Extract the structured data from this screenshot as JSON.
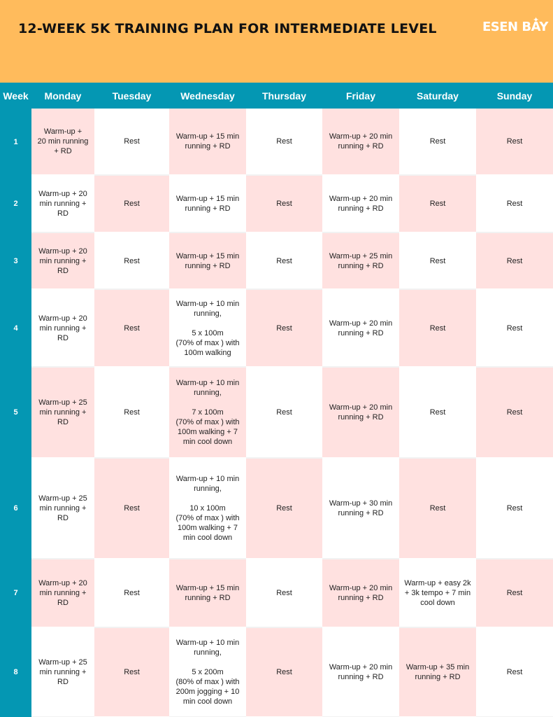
{
  "header": {
    "title": "12-WEEK 5K TRAINING PLAN FOR INTERMEDIATE LEVEL",
    "logo": "ESEN BAY"
  },
  "columns": [
    "Week",
    "Monday",
    "Tuesday",
    "Wednesday",
    "Thursday",
    "Friday",
    "Saturday",
    "Sunday"
  ],
  "rows": [
    {
      "week": "1",
      "cells": [
        "Warm-up +\n20 min running\n+ RD",
        "Rest",
        "Warm-up + 15 min\nrunning + RD",
        "Rest",
        "Warm-up + 20 min\nrunning + RD",
        "Rest",
        "Rest"
      ]
    },
    {
      "week": "2",
      "cells": [
        "Warm-up + 20\nmin running +\nRD",
        "Rest",
        "Warm-up + 15 min\nrunning + RD",
        "Rest",
        "Warm-up + 20 min\nrunning + RD",
        "Rest",
        "Rest"
      ]
    },
    {
      "week": "3",
      "cells": [
        "Warm-up + 20\nmin running +\nRD",
        "Rest",
        "Warm-up + 15 min\nrunning + RD",
        "Rest",
        "Warm-up + 25 min\nrunning + RD",
        "Rest",
        "Rest"
      ]
    },
    {
      "week": "4",
      "cells": [
        "Warm-up + 20\nmin running +\nRD",
        "Rest",
        "Warm-up + 10 min\nrunning,\n\n5 x 100m\n(70% of max ) with\n100m walking",
        "Rest",
        "Warm-up + 20 min\nrunning + RD",
        "Rest",
        "Rest"
      ]
    },
    {
      "week": "5",
      "cells": [
        "Warm-up + 25\nmin running +\nRD",
        "Rest",
        "Warm-up + 10 min\nrunning,\n\n7 x 100m\n(70% of max ) with\n100m walking + 7\nmin cool down",
        "Rest",
        "Warm-up + 20 min\nrunning + RD",
        "Rest",
        "Rest"
      ]
    },
    {
      "week": "6",
      "cells": [
        "Warm-up + 25\nmin running +\nRD",
        "Rest",
        "Warm-up + 10 min\nrunning,\n\n10 x 100m\n(70% of max ) with\n100m walking + 7\nmin cool down",
        "Rest",
        "Warm-up + 30 min\nrunning + RD",
        "Rest",
        "Rest"
      ]
    },
    {
      "week": "7",
      "cells": [
        "Warm-up + 20\nmin running +\nRD",
        "Rest",
        "Warm-up + 15 min\nrunning + RD",
        "Rest",
        "Warm-up + 20 min\nrunning + RD",
        "Warm-up + easy 2k\n+ 3k tempo + 7 min\ncool down",
        "Rest"
      ]
    },
    {
      "week": "8",
      "cells": [
        "Warm-up + 25\nmin running +\nRD",
        "Rest",
        "Warm-up + 10 min\nrunning,\n\n5 x 200m\n(80% of max ) with\n200m jogging + 10\nmin cool down",
        "Rest",
        "Warm-up + 20 min\nrunning + RD",
        "Warm-up + 35 min\nrunning + RD",
        "Rest"
      ]
    }
  ]
}
